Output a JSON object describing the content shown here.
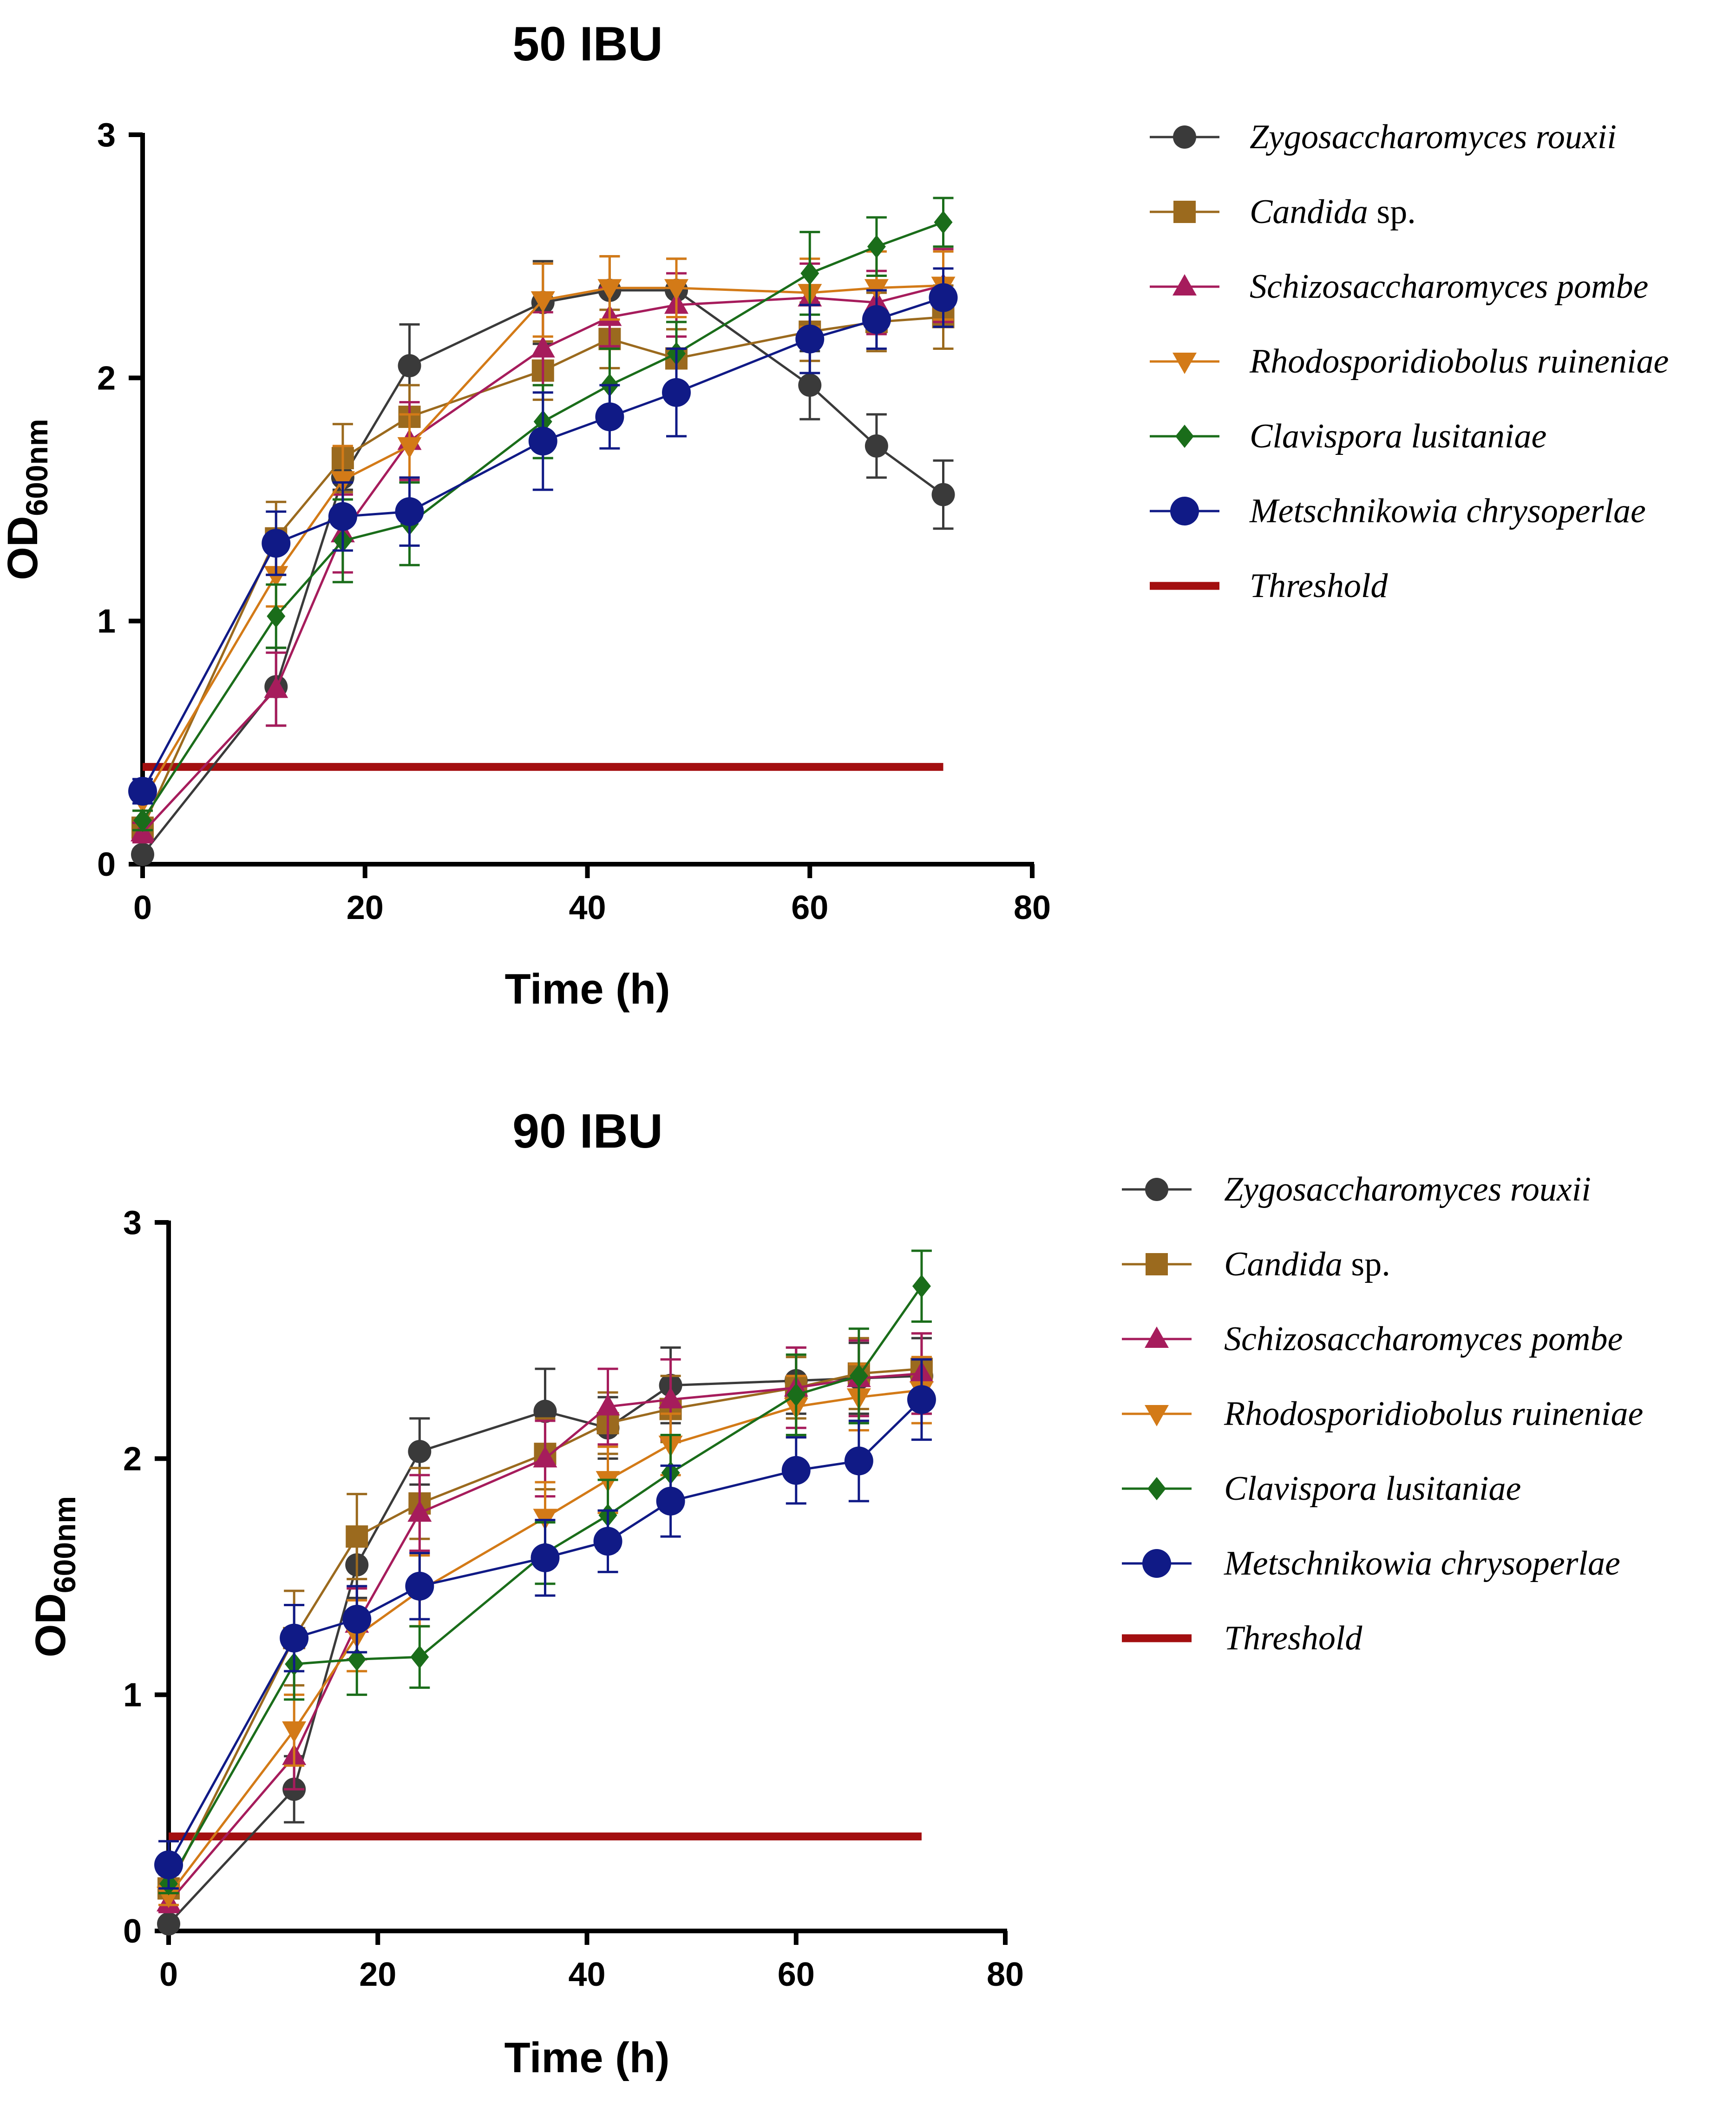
{
  "chart_data": [
    {
      "type": "line",
      "title": "50 IBU",
      "xlabel": "Time (h)",
      "ylabel_main": "OD",
      "ylabel_sub": "600nm",
      "xlim": [
        0,
        80
      ],
      "ylim": [
        0,
        3
      ],
      "xticks": [
        "0",
        "20",
        "40",
        "60",
        "80"
      ],
      "yticks": [
        "0",
        "1",
        "2",
        "3"
      ],
      "x": [
        0,
        12,
        18,
        24,
        36,
        42,
        48,
        60,
        66,
        72
      ],
      "series": [
        {
          "name": "Zygosaccharomyces rouxii",
          "italic": "Zygosaccharomyces rouxii",
          "roman": "",
          "marker": "circle",
          "color": "#3a3a3a",
          "values": [
            0.04,
            0.73,
            1.59,
            2.05,
            2.31,
            2.36,
            2.36,
            1.97,
            1.72,
            1.52
          ],
          "errors": [
            0.02,
            0.16,
            0.05,
            0.17,
            0.17,
            0.14,
            0.13,
            0.14,
            0.13,
            0.14
          ]
        },
        {
          "name": "Candida sp.",
          "italic": "Candida",
          "roman": " sp.",
          "marker": "square",
          "color": "#9b6a1e",
          "values": [
            0.15,
            1.34,
            1.67,
            1.84,
            2.03,
            2.16,
            2.08,
            2.19,
            2.23,
            2.25
          ],
          "errors": [
            0.04,
            0.15,
            0.14,
            0.13,
            0.12,
            0.12,
            0.12,
            0.12,
            0.12,
            0.13
          ]
        },
        {
          "name": "Schizosaccharomyces pombe",
          "italic": "Schizosaccharomyces pombe",
          "roman": "",
          "marker": "triangle-up",
          "color": "#a61c5c",
          "values": [
            0.13,
            0.72,
            1.36,
            1.74,
            2.12,
            2.25,
            2.3,
            2.33,
            2.31,
            2.38
          ],
          "errors": [
            0.04,
            0.15,
            0.16,
            0.16,
            0.15,
            0.12,
            0.13,
            0.14,
            0.13,
            0.15
          ]
        },
        {
          "name": "Rhodosporidiobolus ruineniae",
          "italic": "Rhodosporidiobolus ruineniae",
          "roman": "",
          "marker": "triangle-down",
          "color": "#d37a17",
          "values": [
            0.26,
            1.19,
            1.58,
            1.72,
            2.32,
            2.37,
            2.37,
            2.35,
            2.37,
            2.38
          ],
          "errors": [
            0.04,
            0.13,
            0.14,
            0.13,
            0.15,
            0.13,
            0.12,
            0.14,
            0.15,
            0.14
          ]
        },
        {
          "name": "Clavispora lusitaniae",
          "italic": "Clavispora lusitaniae",
          "roman": "",
          "marker": "diamond",
          "color": "#1a6d1a",
          "values": [
            0.18,
            1.02,
            1.33,
            1.4,
            1.82,
            1.97,
            2.1,
            2.43,
            2.54,
            2.64
          ],
          "errors": [
            0.04,
            0.13,
            0.17,
            0.17,
            0.15,
            0.15,
            0.13,
            0.17,
            0.12,
            0.1
          ]
        },
        {
          "name": "Metschnikowia chrysoperlae",
          "italic": "Metschnikowia chrysoperlae",
          "roman": "",
          "marker": "circle-large",
          "color": "#101a86",
          "values": [
            0.3,
            1.32,
            1.43,
            1.45,
            1.74,
            1.84,
            1.94,
            2.16,
            2.24,
            2.33
          ],
          "errors": [
            0.05,
            0.13,
            0.14,
            0.14,
            0.2,
            0.13,
            0.18,
            0.14,
            0.12,
            0.12
          ]
        }
      ],
      "threshold": {
        "name": "Threshold",
        "value": 0.4,
        "x_range": [
          0,
          72
        ],
        "color": "#a30f10"
      }
    },
    {
      "type": "line",
      "title": "90 IBU",
      "xlabel": "Time (h)",
      "ylabel_main": "OD",
      "ylabel_sub": "600nm",
      "xlim": [
        0,
        80
      ],
      "ylim": [
        0,
        3
      ],
      "xticks": [
        "0",
        "20",
        "40",
        "60",
        "80"
      ],
      "yticks": [
        "0",
        "1",
        "2",
        "3"
      ],
      "x": [
        0,
        12,
        18,
        24,
        36,
        42,
        48,
        60,
        66,
        72
      ],
      "series": [
        {
          "name": "Zygosaccharomyces rouxii",
          "italic": "Zygosaccharomyces rouxii",
          "roman": "",
          "marker": "circle",
          "color": "#3a3a3a",
          "values": [
            0.03,
            0.6,
            1.55,
            2.03,
            2.2,
            2.13,
            2.31,
            2.33,
            2.34,
            2.35
          ],
          "errors": [
            0.02,
            0.14,
            0.14,
            0.14,
            0.18,
            0.13,
            0.16,
            0.14,
            0.15,
            0.16
          ]
        },
        {
          "name": "Candida sp.",
          "italic": "Candida",
          "roman": " sp.",
          "marker": "square",
          "color": "#9b6a1e",
          "values": [
            0.18,
            1.24,
            1.67,
            1.81,
            2.02,
            2.15,
            2.21,
            2.3,
            2.36,
            2.38
          ],
          "errors": [
            0.04,
            0.2,
            0.18,
            0.15,
            0.15,
            0.13,
            0.14,
            0.13,
            0.15,
            0.15
          ]
        },
        {
          "name": "Schizosaccharomyces pombe",
          "italic": "Schizosaccharomyces pombe",
          "roman": "",
          "marker": "triangle-up",
          "color": "#a61c5c",
          "values": [
            0.12,
            0.74,
            1.3,
            1.77,
            2.0,
            2.22,
            2.25,
            2.3,
            2.34,
            2.36
          ],
          "errors": [
            0.04,
            0.14,
            0.15,
            0.16,
            0.16,
            0.16,
            0.17,
            0.17,
            0.16,
            0.17
          ]
        },
        {
          "name": "Rhodosporidiobolus ruineniae",
          "italic": "Rhodosporidiobolus ruineniae",
          "roman": "",
          "marker": "triangle-down",
          "color": "#d37a17",
          "values": [
            0.15,
            0.85,
            1.25,
            1.44,
            1.75,
            1.91,
            2.06,
            2.22,
            2.26,
            2.29
          ],
          "errors": [
            0.04,
            0.15,
            0.15,
            0.15,
            0.15,
            0.14,
            0.13,
            0.13,
            0.14,
            0.14
          ]
        },
        {
          "name": "Clavispora lusitaniae",
          "italic": "Clavispora lusitaniae",
          "roman": "",
          "marker": "diamond",
          "color": "#1a6d1a",
          "values": [
            0.2,
            1.13,
            1.15,
            1.16,
            1.6,
            1.76,
            1.94,
            2.27,
            2.35,
            2.73
          ],
          "errors": [
            0.04,
            0.15,
            0.15,
            0.13,
            0.13,
            0.15,
            0.16,
            0.17,
            0.2,
            0.15
          ]
        },
        {
          "name": "Metschnikowia chrysoperlae",
          "italic": "Metschnikowia chrysoperlae",
          "roman": "",
          "marker": "circle-large",
          "color": "#101a86",
          "values": [
            0.28,
            1.24,
            1.32,
            1.46,
            1.58,
            1.65,
            1.82,
            1.95,
            1.99,
            2.25
          ],
          "errors": [
            0.1,
            0.14,
            0.14,
            0.14,
            0.16,
            0.13,
            0.15,
            0.14,
            0.17,
            0.17
          ]
        }
      ],
      "threshold": {
        "name": "Threshold",
        "value": 0.4,
        "x_range": [
          0,
          72
        ],
        "color": "#a30f10"
      }
    }
  ]
}
